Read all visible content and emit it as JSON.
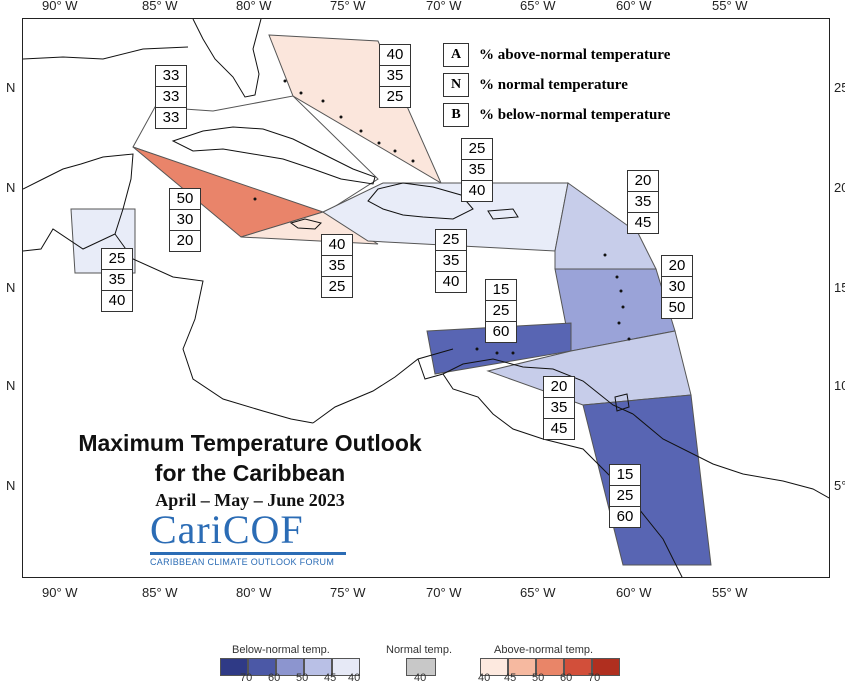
{
  "map": {
    "longitude_labels": [
      "90° W",
      "85° W",
      "80° W",
      "75° W",
      "70° W",
      "65° W",
      "60° W",
      "55° W"
    ],
    "latitude_labels_left": [
      "N",
      "N",
      "N",
      "N",
      "N"
    ],
    "latitude_labels_right": [
      "25",
      "20",
      "15",
      "10",
      "5°"
    ],
    "colors": {
      "land_outline": "#111111",
      "region_outline": "#555555",
      "above_40": "#fbe6dc",
      "above_50": "#e9846a",
      "below_40": "#e8ecf8",
      "below_45": "#c7cdea",
      "below_50": "#9aa3d8",
      "below_60": "#5865b3"
    }
  },
  "regions": [
    {
      "name": "bahamas",
      "A": "40",
      "N": "35",
      "B": "25",
      "tercile": "above_40"
    },
    {
      "name": "gulf_northwest",
      "A": "33",
      "N": "33",
      "B": "33",
      "tercile": "none"
    },
    {
      "name": "cuba_cayman",
      "A": "50",
      "N": "30",
      "B": "20",
      "tercile": "above_50"
    },
    {
      "name": "belize",
      "A": "25",
      "N": "35",
      "B": "40",
      "tercile": "below_40"
    },
    {
      "name": "jamaica",
      "A": "40",
      "N": "35",
      "B": "25",
      "tercile": "above_40"
    },
    {
      "name": "hispaniola_north",
      "A": "25",
      "N": "35",
      "B": "40",
      "tercile": "below_40"
    },
    {
      "name": "hispaniola_south",
      "A": "25",
      "N": "35",
      "B": "40",
      "tercile": "below_40"
    },
    {
      "name": "leeward",
      "A": "20",
      "N": "35",
      "B": "45",
      "tercile": "below_45"
    },
    {
      "name": "windward",
      "A": "20",
      "N": "30",
      "B": "50",
      "tercile": "below_50"
    },
    {
      "name": "abc_islands",
      "A": "15",
      "N": "25",
      "B": "60",
      "tercile": "below_60"
    },
    {
      "name": "trinidad_sea",
      "A": "20",
      "N": "35",
      "B": "45",
      "tercile": "below_45"
    },
    {
      "name": "guianas",
      "A": "15",
      "N": "25",
      "B": "60",
      "tercile": "below_60"
    }
  ],
  "key": [
    {
      "letter": "A",
      "text": "% above-normal temperature"
    },
    {
      "letter": "N",
      "text": "% normal temperature"
    },
    {
      "letter": "B",
      "text": "% below-normal temperature"
    }
  ],
  "title": {
    "line1": "Maximum Temperature Outlook",
    "line2": "for the Caribbean",
    "period": "April – May – June 2023"
  },
  "logo": {
    "name": "CariCOF",
    "subtitle": "CARIBBEAN CLIMATE OUTLOOK FORUM"
  },
  "legend": {
    "below_title": "Below-normal temp.",
    "normal_title": "Normal temp.",
    "above_title": "Above-normal temp.",
    "below_colors": [
      "#2f3a86",
      "#4b58a6",
      "#8c95cf",
      "#b9c0e6",
      "#e6e9f6"
    ],
    "below_ticks": [
      "70",
      "60",
      "50",
      "45",
      "40"
    ],
    "normal_color": "#c8c8c8",
    "normal_tick": "40",
    "above_colors": [
      "#fde9df",
      "#f6b9a0",
      "#e98568",
      "#d24f3a",
      "#b02f1f"
    ],
    "above_ticks": [
      "40",
      "45",
      "50",
      "60",
      "70"
    ]
  }
}
